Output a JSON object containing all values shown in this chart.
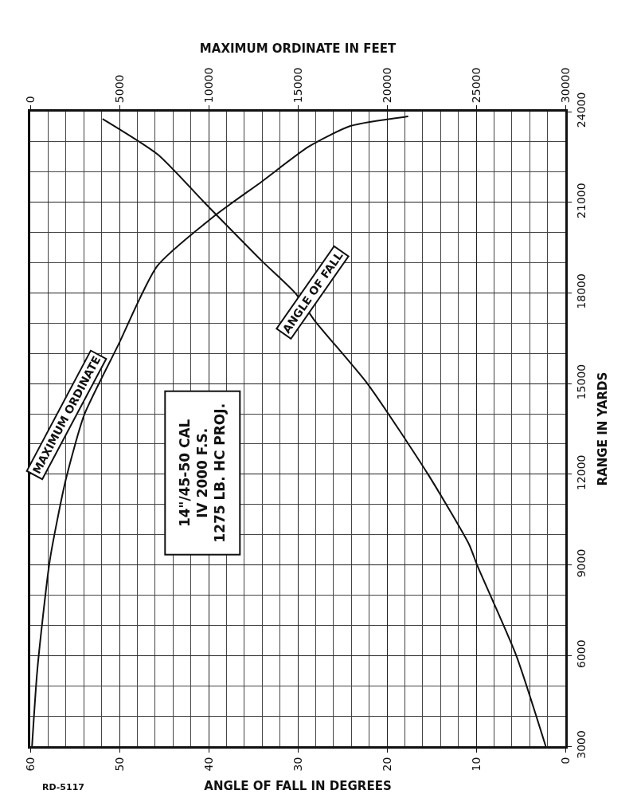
{
  "chart_data": {
    "type": "line",
    "xlabel": "ANGLE OF FALL IN DEGREES",
    "x2label": "MAXIMUM ORDINATE IN FEET",
    "ylabel": "RANGE IN YARDS",
    "xlim": [
      60,
      0
    ],
    "xticks": [
      60,
      50,
      40,
      30,
      20,
      10,
      0
    ],
    "x2lim": [
      0,
      30000
    ],
    "x2ticks": [
      0,
      5000,
      10000,
      15000,
      20000,
      25000,
      30000
    ],
    "ylim": [
      3000,
      24000
    ],
    "yticks": [
      3000,
      6000,
      9000,
      12000,
      15000,
      18000,
      21000,
      24000
    ],
    "grid": true,
    "legend": false,
    "line_style": "solid",
    "marker": "none",
    "series": [
      {
        "name": "ANGLE OF FALL",
        "color": "#111111",
        "x": [
          2.2,
          5.5,
          9.9,
          10.8,
          15.4,
          22.2,
          28.1,
          30.3,
          34.0,
          40.5,
          45.7,
          51.9
        ],
        "values": [
          3000,
          6000,
          9000,
          9680,
          12000,
          15000,
          17080,
          18000,
          19050,
          21000,
          22580,
          23760
        ]
      },
      {
        "name": "MAXIMUM ORDINATE",
        "color": "#111111",
        "axis": "x2",
        "x": [
          100,
          400,
          1100,
          1980,
          3030,
          4920,
          7120,
          10330,
          12970,
          15610,
          17980,
          21190
        ],
        "values": [
          3000,
          5550,
          9160,
          11790,
          13970,
          16260,
          18890,
          20550,
          21680,
          22840,
          23530,
          23840
        ]
      }
    ],
    "annotations": [
      "14\"/45-50 CAL\nIV 2000 F.S.\n1275 LB. HC PROJ.",
      "RD-5117"
    ]
  }
}
